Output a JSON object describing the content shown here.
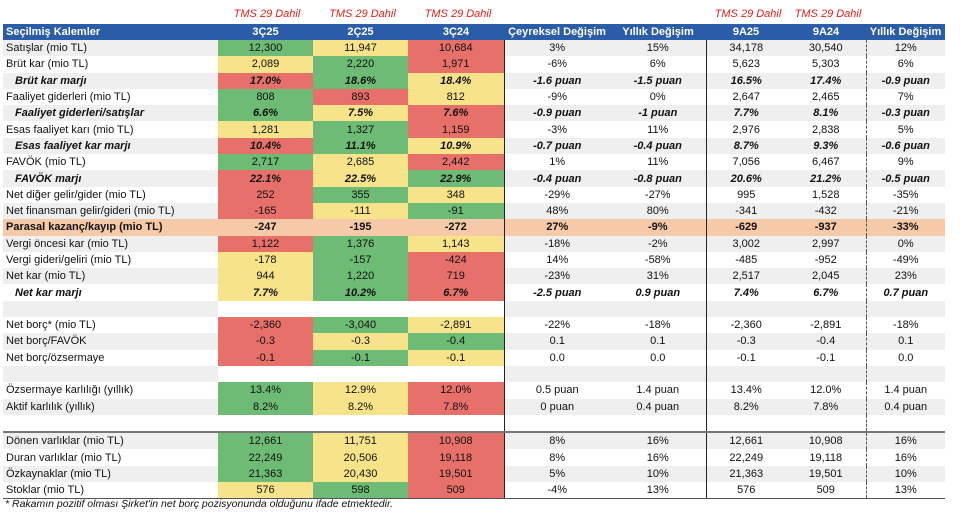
{
  "annotations": {
    "tms_label": "TMS 29 Dahil"
  },
  "header": {
    "label": "Seçilmiş Kalemler",
    "columns": [
      "3Ç25",
      "2Ç25",
      "3Ç24",
      "Çeyreksel Değişim",
      "Yıllık Değişim",
      "9A25",
      "9A24",
      "Yıllık Değişim"
    ]
  },
  "colors": {
    "header_bg": "#2a5ca8",
    "green": "#6dbb74",
    "yellow": "#f7e38a",
    "red": "#e8706b",
    "highlight": "#f6c9a8",
    "annotation": "#e0231b"
  },
  "rows": [
    {
      "label": "Satışlar (mio TL)",
      "style": "stripe",
      "v": [
        "12,300",
        "11,947",
        "10,684",
        "3%",
        "15%",
        "34,178",
        "30,540",
        "12%"
      ],
      "c": [
        "g",
        "y",
        "r"
      ]
    },
    {
      "label": "Brüt kar (mio TL)",
      "style": "plain",
      "v": [
        "2,089",
        "2,220",
        "1,971",
        "-6%",
        "6%",
        "5,623",
        "5,303",
        "6%"
      ],
      "c": [
        "y",
        "g",
        "r"
      ]
    },
    {
      "label": "Brüt kar marjı",
      "style": "stripe em",
      "v": [
        "17.0%",
        "18.6%",
        "18.4%",
        "-1.6 puan",
        "-1.5 puan",
        "16.5%",
        "17.4%",
        "-0.9 puan"
      ],
      "c": [
        "r",
        "g",
        "y"
      ]
    },
    {
      "label": "Faaliyet giderleri (mio TL)",
      "style": "plain",
      "v": [
        "808",
        "893",
        "812",
        "-9%",
        "0%",
        "2,647",
        "2,465",
        "7%"
      ],
      "c": [
        "g",
        "r",
        "y"
      ]
    },
    {
      "label": "Faaliyet giderleri/satışlar",
      "style": "stripe em",
      "v": [
        "6.6%",
        "7.5%",
        "7.6%",
        "-0.9 puan",
        "-1 puan",
        "7.7%",
        "8.1%",
        "-0.3 puan"
      ],
      "c": [
        "g",
        "y",
        "r"
      ]
    },
    {
      "label": "Esas faaliyet karı (mio TL)",
      "style": "plain",
      "v": [
        "1,281",
        "1,327",
        "1,159",
        "-3%",
        "11%",
        "2,976",
        "2,838",
        "5%"
      ],
      "c": [
        "y",
        "g",
        "r"
      ]
    },
    {
      "label": "Esas faaliyet kar marjı",
      "style": "stripe em",
      "v": [
        "10.4%",
        "11.1%",
        "10.9%",
        "-0.7 puan",
        "-0.4 puan",
        "8.7%",
        "9.3%",
        "-0.6 puan"
      ],
      "c": [
        "r",
        "g",
        "y"
      ]
    },
    {
      "label": "FAVÖK (mio TL)",
      "style": "plain",
      "v": [
        "2,717",
        "2,685",
        "2,442",
        "1%",
        "11%",
        "7,056",
        "6,467",
        "9%"
      ],
      "c": [
        "g",
        "y",
        "r"
      ]
    },
    {
      "label": "FAVÖK marjı",
      "style": "stripe em",
      "v": [
        "22.1%",
        "22.5%",
        "22.9%",
        "-0.4 puan",
        "-0.8 puan",
        "20.6%",
        "21.2%",
        "-0.5 puan"
      ],
      "c": [
        "r",
        "y",
        "g"
      ]
    },
    {
      "label": "Net diğer gelir/gider (mio TL)",
      "style": "plain",
      "v": [
        "252",
        "355",
        "348",
        "-29%",
        "-27%",
        "995",
        "1,528",
        "-35%"
      ],
      "c": [
        "r",
        "g",
        "y"
      ]
    },
    {
      "label": "Net finansman gelir/gideri (mio TL)",
      "style": "stripe",
      "v": [
        "-165",
        "-111",
        "-91",
        "48%",
        "80%",
        "-341",
        "-432",
        "-21%"
      ],
      "c": [
        "r",
        "y",
        "g"
      ]
    },
    {
      "label": "Parasal kazanç/kayıp (mio TL)",
      "style": "hl",
      "v": [
        "-247",
        "-195",
        "-272",
        "27%",
        "-9%",
        "-629",
        "-937",
        "-33%"
      ],
      "c": [
        "y",
        "g",
        "r"
      ]
    },
    {
      "label": "Vergi öncesi kar (mio TL)",
      "style": "stripe",
      "v": [
        "1,122",
        "1,376",
        "1,143",
        "-18%",
        "-2%",
        "3,002",
        "2,997",
        "0%"
      ],
      "c": [
        "r",
        "g",
        "y"
      ]
    },
    {
      "label": "Vergi gideri/geliri (mio TL)",
      "style": "plain",
      "v": [
        "-178",
        "-157",
        "-424",
        "14%",
        "-58%",
        "-485",
        "-952",
        "-49%"
      ],
      "c": [
        "y",
        "g",
        "r"
      ]
    },
    {
      "label": "Net kar (mio TL)",
      "style": "stripe",
      "v": [
        "944",
        "1,220",
        "719",
        "-23%",
        "31%",
        "2,517",
        "2,045",
        "23%"
      ],
      "c": [
        "y",
        "g",
        "r"
      ]
    },
    {
      "label": "Net kar marjı",
      "style": "plain em",
      "v": [
        "7.7%",
        "10.2%",
        "6.7%",
        "-2.5 puan",
        "0.9 puan",
        "7.4%",
        "6.7%",
        "0.7 puan"
      ],
      "c": [
        "y",
        "g",
        "r"
      ]
    },
    {
      "label": "",
      "style": "stripe",
      "v": [
        "",
        "",
        "",
        "",
        "",
        "",
        "",
        ""
      ],
      "c": [
        "blank",
        "blank",
        "blank"
      ]
    },
    {
      "label": "Net borç* (mio TL)",
      "style": "plain",
      "v": [
        "-2,360",
        "-3,040",
        "-2,891",
        "-22%",
        "-18%",
        "-2,360",
        "-2,891",
        "-18%"
      ],
      "c": [
        "r",
        "g",
        "y"
      ]
    },
    {
      "label": "Net borç/FAVÖK",
      "style": "stripe",
      "v": [
        "-0.3",
        "-0.3",
        "-0.4",
        "0.1",
        "0.1",
        "-0.3",
        "-0.4",
        "0.1"
      ],
      "c": [
        "r",
        "y",
        "g"
      ]
    },
    {
      "label": "Net borç/özsermaye",
      "style": "plain",
      "v": [
        "-0.1",
        "-0.1",
        "-0.1",
        "0.0",
        "0.0",
        "-0.1",
        "-0.1",
        "0.0"
      ],
      "c": [
        "r",
        "g",
        "y"
      ]
    },
    {
      "label": "",
      "style": "stripe",
      "v": [
        "",
        "",
        "",
        "",
        "",
        "",
        "",
        ""
      ],
      "c": [
        "blank",
        "blank",
        "blank"
      ]
    },
    {
      "label": "Özsermaye karlılığı (yıllık)",
      "style": "plain",
      "v": [
        "13.4%",
        "12.9%",
        "12.0%",
        "0.5 puan",
        "1.4 puan",
        "13.4%",
        "12.0%",
        "1.4 puan"
      ],
      "c": [
        "g",
        "y",
        "r"
      ]
    },
    {
      "label": "Aktif karlılık (yıllık)",
      "style": "stripe",
      "v": [
        "8.2%",
        "8.2%",
        "7.8%",
        "0 puan",
        "0.4 puan",
        "8.2%",
        "7.8%",
        "0.4 puan"
      ],
      "c": [
        "g",
        "y",
        "r"
      ]
    },
    {
      "label": "",
      "style": "plain",
      "v": [
        "",
        "",
        "",
        "",
        "",
        "",
        "",
        ""
      ],
      "c": [
        "blank",
        "blank",
        "blank"
      ]
    },
    {
      "label": "Dönen varlıklar (mio TL)",
      "style": "stripe sec-top",
      "v": [
        "12,661",
        "11,751",
        "10,908",
        "8%",
        "16%",
        "12,661",
        "10,908",
        "16%"
      ],
      "c": [
        "g",
        "y",
        "r"
      ]
    },
    {
      "label": "Duran varlıklar (mio TL)",
      "style": "plain",
      "v": [
        "22,249",
        "20,506",
        "19,118",
        "8%",
        "16%",
        "22,249",
        "19,118",
        "16%"
      ],
      "c": [
        "g",
        "y",
        "r"
      ]
    },
    {
      "label": "Özkaynaklar (mio TL)",
      "style": "stripe",
      "v": [
        "21,363",
        "20,430",
        "19,501",
        "5%",
        "10%",
        "21,363",
        "19,501",
        "10%"
      ],
      "c": [
        "g",
        "y",
        "r"
      ]
    },
    {
      "label": "Stoklar (mio TL)",
      "style": "plain last",
      "v": [
        "576",
        "598",
        "509",
        "-4%",
        "13%",
        "576",
        "509",
        "13%"
      ],
      "c": [
        "y",
        "g",
        "r"
      ]
    }
  ],
  "footnote": "* Rakamın pozitif olması Şirket'in net borç pozisyonunda olduğunu ifade etmektedir."
}
